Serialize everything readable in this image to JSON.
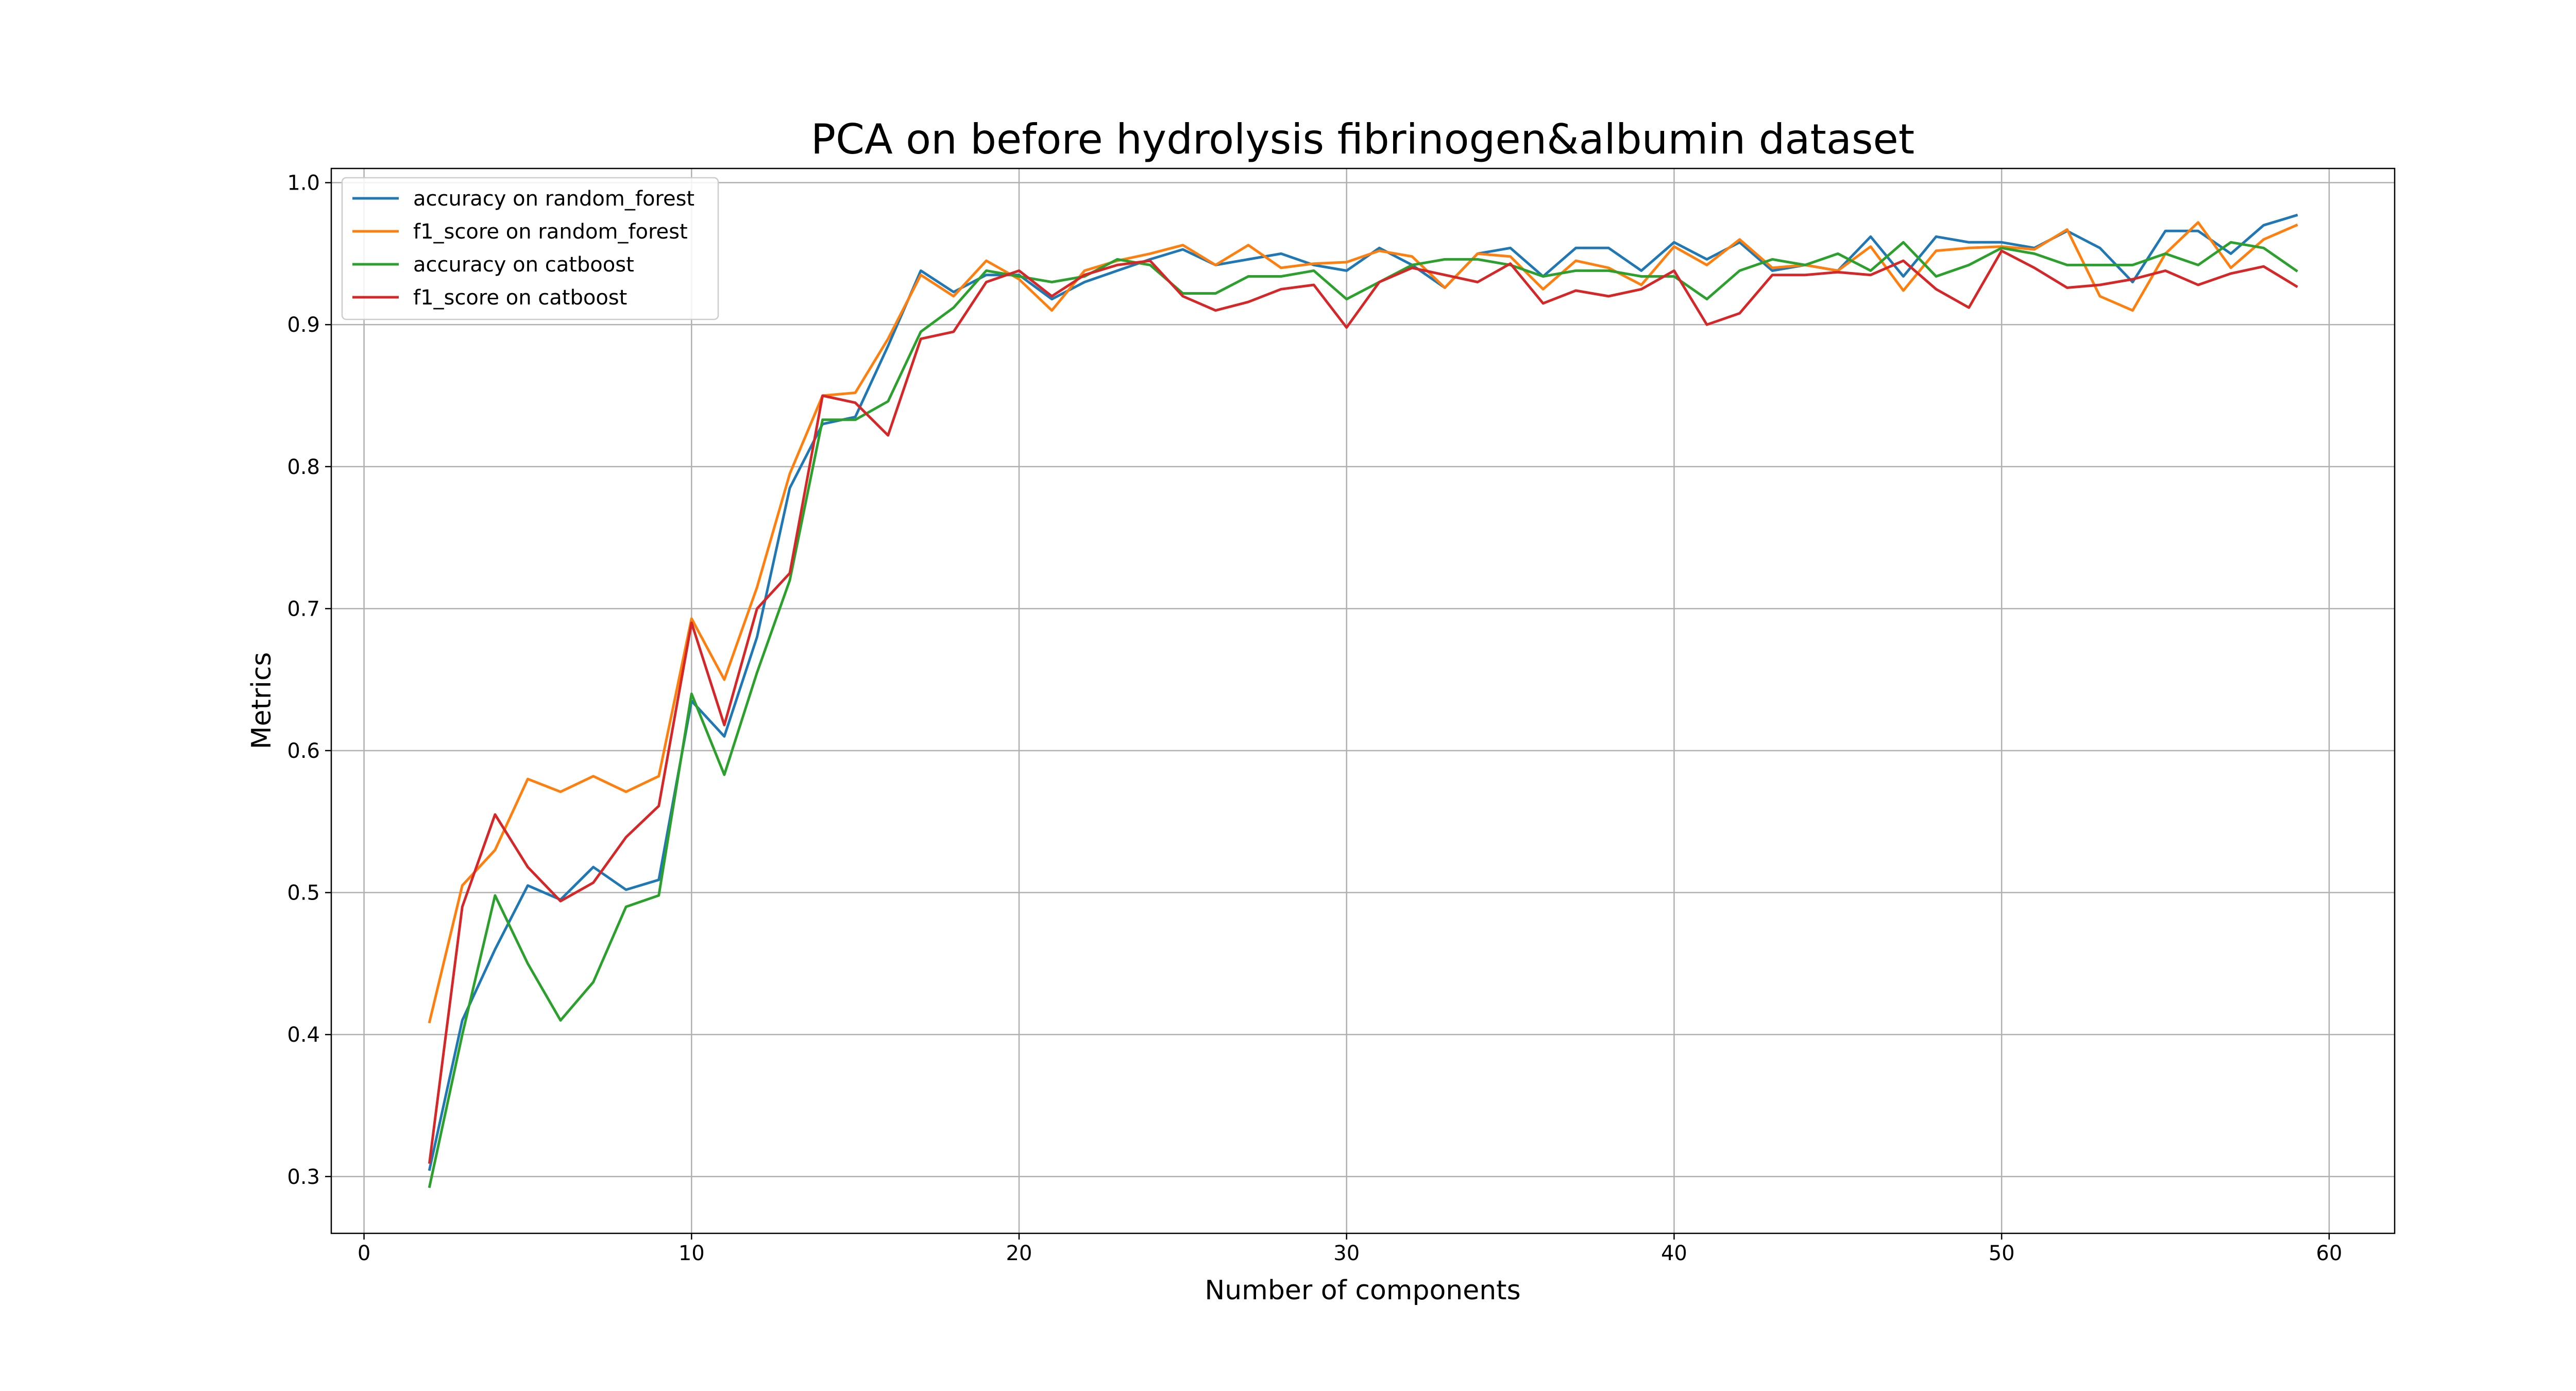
{
  "chart_data": {
    "type": "line",
    "title": "PCA on before hydrolysis fibrinogen&albumin dataset",
    "xlabel": "Number of components",
    "ylabel": "Metrics",
    "xlim": [
      -1,
      62
    ],
    "ylim": [
      0.26,
      1.01
    ],
    "xticks": [
      0,
      10,
      20,
      30,
      40,
      50,
      60
    ],
    "yticks": [
      0.3,
      0.4,
      0.5,
      0.6,
      0.7,
      0.8,
      0.9,
      1.0
    ],
    "xtick_labels": [
      "0",
      "10",
      "20",
      "30",
      "40",
      "50",
      "60"
    ],
    "ytick_labels": [
      "0.3",
      "0.4",
      "0.5",
      "0.6",
      "0.7",
      "0.8",
      "0.9",
      "1.0"
    ],
    "grid": true,
    "legend_position": "upper-left",
    "x": [
      2,
      3,
      4,
      5,
      6,
      7,
      8,
      9,
      10,
      11,
      12,
      13,
      14,
      15,
      16,
      17,
      18,
      19,
      20,
      21,
      22,
      23,
      24,
      25,
      26,
      27,
      28,
      29,
      30,
      31,
      32,
      33,
      34,
      35,
      36,
      37,
      38,
      39,
      40,
      41,
      42,
      43,
      44,
      45,
      46,
      47,
      48,
      49,
      50,
      51,
      52,
      53,
      54,
      55,
      56,
      57,
      58,
      59
    ],
    "series": [
      {
        "name": "accuracy on random_forest",
        "color": "#1f77b4",
        "values": [
          0.305,
          0.41,
          0.46,
          0.505,
          0.495,
          0.518,
          0.502,
          0.509,
          0.635,
          0.61,
          0.68,
          0.785,
          0.83,
          0.835,
          0.885,
          0.938,
          0.923,
          0.935,
          0.935,
          0.918,
          0.93,
          0.938,
          0.946,
          0.953,
          0.942,
          0.946,
          0.95,
          0.942,
          0.938,
          0.954,
          0.942,
          0.926,
          0.95,
          0.954,
          0.934,
          0.954,
          0.954,
          0.938,
          0.958,
          0.946,
          0.958,
          0.938,
          0.942,
          0.938,
          0.962,
          0.934,
          0.962,
          0.958,
          0.958,
          0.954,
          0.966,
          0.954,
          0.93,
          0.966,
          0.966,
          0.95,
          0.97,
          0.977
        ]
      },
      {
        "name": "f1_score on random_forest",
        "color": "#ff7f0e",
        "values": [
          0.409,
          0.505,
          0.53,
          0.58,
          0.571,
          0.582,
          0.571,
          0.582,
          0.693,
          0.65,
          0.715,
          0.795,
          0.85,
          0.852,
          0.89,
          0.935,
          0.92,
          0.945,
          0.932,
          0.91,
          0.938,
          0.945,
          0.95,
          0.956,
          0.942,
          0.956,
          0.94,
          0.943,
          0.944,
          0.952,
          0.948,
          0.926,
          0.95,
          0.948,
          0.925,
          0.945,
          0.94,
          0.928,
          0.955,
          0.942,
          0.96,
          0.94,
          0.942,
          0.938,
          0.955,
          0.924,
          0.952,
          0.954,
          0.955,
          0.953,
          0.967,
          0.92,
          0.91,
          0.95,
          0.972,
          0.94,
          0.96,
          0.97
        ]
      },
      {
        "name": "accuracy on catboost",
        "color": "#2ca02c",
        "values": [
          0.293,
          0.4,
          0.498,
          0.45,
          0.41,
          0.437,
          0.49,
          0.498,
          0.64,
          0.583,
          0.655,
          0.72,
          0.833,
          0.833,
          0.846,
          0.895,
          0.912,
          0.938,
          0.934,
          0.93,
          0.934,
          0.946,
          0.942,
          0.922,
          0.922,
          0.934,
          0.934,
          0.938,
          0.918,
          0.93,
          0.942,
          0.946,
          0.946,
          0.942,
          0.934,
          0.938,
          0.938,
          0.934,
          0.934,
          0.918,
          0.938,
          0.946,
          0.942,
          0.95,
          0.938,
          0.958,
          0.934,
          0.942,
          0.954,
          0.95,
          0.942,
          0.942,
          0.942,
          0.95,
          0.942,
          0.958,
          0.954,
          0.938
        ]
      },
      {
        "name": "f1_score on catboost",
        "color": "#d62728",
        "values": [
          0.31,
          0.49,
          0.555,
          0.518,
          0.494,
          0.507,
          0.539,
          0.561,
          0.69,
          0.618,
          0.7,
          0.725,
          0.85,
          0.845,
          0.822,
          0.89,
          0.895,
          0.93,
          0.938,
          0.92,
          0.935,
          0.942,
          0.945,
          0.92,
          0.91,
          0.916,
          0.925,
          0.928,
          0.898,
          0.93,
          0.94,
          0.935,
          0.93,
          0.943,
          0.915,
          0.924,
          0.92,
          0.925,
          0.938,
          0.9,
          0.908,
          0.935,
          0.935,
          0.937,
          0.935,
          0.945,
          0.925,
          0.912,
          0.952,
          0.94,
          0.926,
          0.928,
          0.932,
          0.938,
          0.928,
          0.936,
          0.941,
          0.927
        ]
      }
    ]
  }
}
